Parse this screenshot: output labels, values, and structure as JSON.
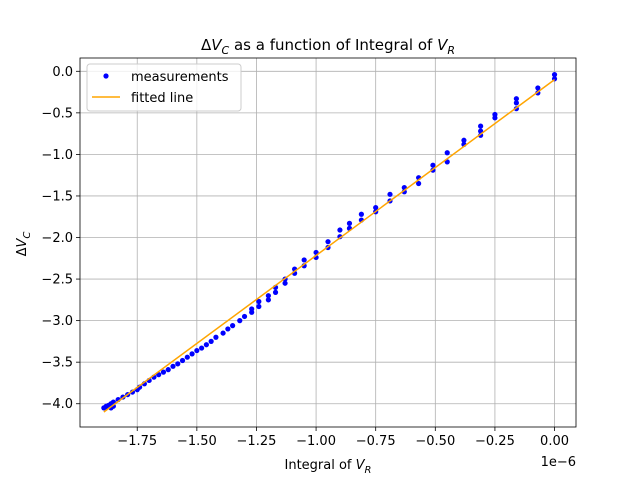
{
  "chart_data": {
    "type": "scatter",
    "title_parts": {
      "delta": "Δ",
      "v": "V",
      "sub_c": "C",
      "middle": " as a function of Integral of ",
      "sub_r": "R"
    },
    "xlabel_parts": {
      "text": "Integral of ",
      "v": "V",
      "sub": "R"
    },
    "ylabel_parts": {
      "delta": "Δ",
      "v": "V",
      "sub": "C"
    },
    "offset_text": "1e−6",
    "x_scale": 1e-06,
    "xlim": [
      -1.99,
      0.09
    ],
    "ylim": [
      -4.28,
      0.16
    ],
    "x_ticks": [
      -1.75,
      -1.5,
      -1.25,
      -1.0,
      -0.75,
      -0.5,
      -0.25,
      0.0
    ],
    "x_tick_labels": [
      "−1.75",
      "−1.50",
      "−1.25",
      "−1.00",
      "−0.75",
      "−0.50",
      "−0.25",
      "0.00"
    ],
    "y_ticks": [
      0.0,
      -0.5,
      -1.0,
      -1.5,
      -2.0,
      -2.5,
      -3.0,
      -3.5,
      -4.0
    ],
    "y_tick_labels": [
      "0.0",
      "−0.5",
      "−1.0",
      "−1.5",
      "−2.0",
      "−2.5",
      "−3.0",
      "−3.5",
      "−4.0"
    ],
    "grid": true,
    "legend_position": "upper-left",
    "series": [
      {
        "name": "measurements",
        "kind": "points",
        "color": "#0000ff",
        "x": [
          0.0,
          0.0,
          -0.07,
          -0.07,
          -0.16,
          -0.16,
          -0.16,
          -0.25,
          -0.25,
          -0.31,
          -0.31,
          -0.31,
          -0.38,
          -0.38,
          -0.45,
          -0.45,
          -0.51,
          -0.51,
          -0.57,
          -0.57,
          -0.63,
          -0.63,
          -0.69,
          -0.69,
          -0.75,
          -0.75,
          -0.81,
          -0.81,
          -0.86,
          -0.86,
          -0.9,
          -0.9,
          -0.95,
          -0.95,
          -1.0,
          -1.0,
          -1.05,
          -1.05,
          -1.09,
          -1.09,
          -1.13,
          -1.13,
          -1.17,
          -1.17,
          -1.2,
          -1.2,
          -1.24,
          -1.24,
          -1.27,
          -1.27,
          -1.3,
          -1.32,
          -1.35,
          -1.37,
          -1.39,
          -1.42,
          -1.44,
          -1.46,
          -1.48,
          -1.5,
          -1.52,
          -1.54,
          -1.56,
          -1.58,
          -1.6,
          -1.62,
          -1.64,
          -1.66,
          -1.68,
          -1.7,
          -1.72,
          -1.74,
          -1.75,
          -1.77,
          -1.79,
          -1.81,
          -1.83,
          -1.85,
          -1.86,
          -1.87,
          -1.88,
          -1.89,
          -1.88,
          -1.86,
          -1.85
        ],
        "y": [
          -0.04,
          -0.09,
          -0.2,
          -0.26,
          -0.33,
          -0.38,
          -0.45,
          -0.52,
          -0.56,
          -0.66,
          -0.72,
          -0.77,
          -0.83,
          -0.88,
          -0.98,
          -1.09,
          -1.13,
          -1.19,
          -1.28,
          -1.35,
          -1.4,
          -1.45,
          -1.48,
          -1.56,
          -1.64,
          -1.69,
          -1.72,
          -1.79,
          -1.83,
          -1.89,
          -1.91,
          -1.99,
          -2.05,
          -2.12,
          -2.18,
          -2.24,
          -2.27,
          -2.34,
          -2.38,
          -2.43,
          -2.5,
          -2.55,
          -2.6,
          -2.66,
          -2.7,
          -2.75,
          -2.77,
          -2.83,
          -2.86,
          -2.9,
          -2.95,
          -3.0,
          -3.06,
          -3.1,
          -3.15,
          -3.2,
          -3.25,
          -3.29,
          -3.33,
          -3.36,
          -3.4,
          -3.44,
          -3.48,
          -3.52,
          -3.55,
          -3.59,
          -3.62,
          -3.65,
          -3.68,
          -3.72,
          -3.76,
          -3.8,
          -3.83,
          -3.86,
          -3.89,
          -3.92,
          -3.95,
          -3.98,
          -4.0,
          -4.02,
          -4.03,
          -4.05,
          -4.04,
          -4.05,
          -4.03
        ]
      },
      {
        "name": "fitted line",
        "kind": "line",
        "color": "#ffa500",
        "x": [
          -1.89,
          0.0
        ],
        "y": [
          -4.1,
          -0.1
        ]
      }
    ]
  }
}
